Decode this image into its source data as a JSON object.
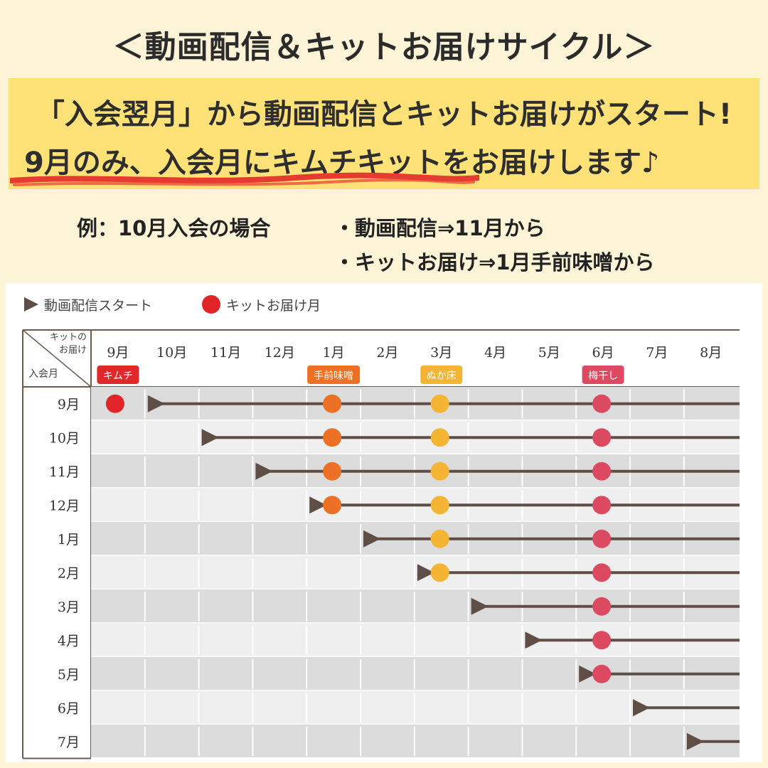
{
  "title": "＜動画配信＆キットお届けサイクル＞",
  "banner": {
    "line1": "「入会翌月」から動画配信とキットお届けがスタート!",
    "line2": "9月のみ、入会月にキムチキットをお届けします♪"
  },
  "example": {
    "label": "例：10月入会の場合",
    "item1": "・動画配信⇒11月から",
    "item2": "・キットお届け⇒1月手前味噌から"
  },
  "legend": {
    "stream_start": "動画配信スタート",
    "kit_month": "キットお届け月"
  },
  "colors": {
    "background": "#fdf3d6",
    "banner": "#ffe277",
    "underline": "#e63b30",
    "line": "#5e4e45",
    "red_dot": "#e02427",
    "kimchi": "#e0282a",
    "miso": "#ec7025",
    "nukadoko": "#f3b533",
    "umeboshi": "#dc4a62",
    "row_dark": "#dcdcdc",
    "row_light": "#efefef"
  },
  "table": {
    "corner_top": "キットのお届け",
    "corner_bottom": "入会月",
    "columns": [
      "9月",
      "10月",
      "11月",
      "12月",
      "1月",
      "2月",
      "3月",
      "4月",
      "5月",
      "6月",
      "7月",
      "8月"
    ],
    "rows": [
      "9月",
      "10月",
      "11月",
      "12月",
      "1月",
      "2月",
      "3月",
      "4月",
      "5月",
      "6月",
      "7月"
    ],
    "kits": [
      {
        "label": "キムチ",
        "column": 0,
        "color": "#e0282a"
      },
      {
        "label": "手前味噌",
        "column": 4,
        "color": "#ec7025"
      },
      {
        "label": "ぬか床",
        "column": 6,
        "color": "#f3b533"
      },
      {
        "label": "梅干し",
        "column": 9,
        "color": "#dc4a62"
      }
    ],
    "stream_start_column": [
      1,
      2,
      3,
      4,
      5,
      6,
      7,
      8,
      9,
      10,
      11
    ],
    "bonus_kimchi_row": 0
  }
}
